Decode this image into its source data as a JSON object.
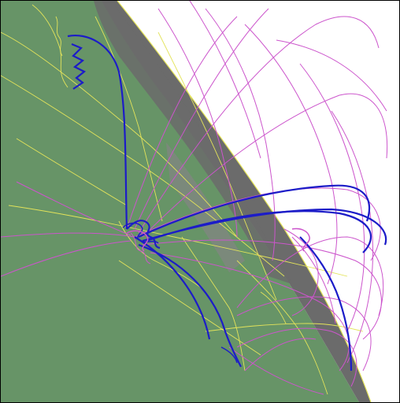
{
  "scene": {
    "colors": {
      "background": "#ffffff",
      "land": "#679467",
      "land_dark": "#5f8a60",
      "terminator": "#6b6b6b",
      "terminator_light": "#858585",
      "coastline": "#e3e35a",
      "trajectory_magenta": "#cc55cc",
      "trajectory_blue": "#1c1cc8"
    }
  }
}
